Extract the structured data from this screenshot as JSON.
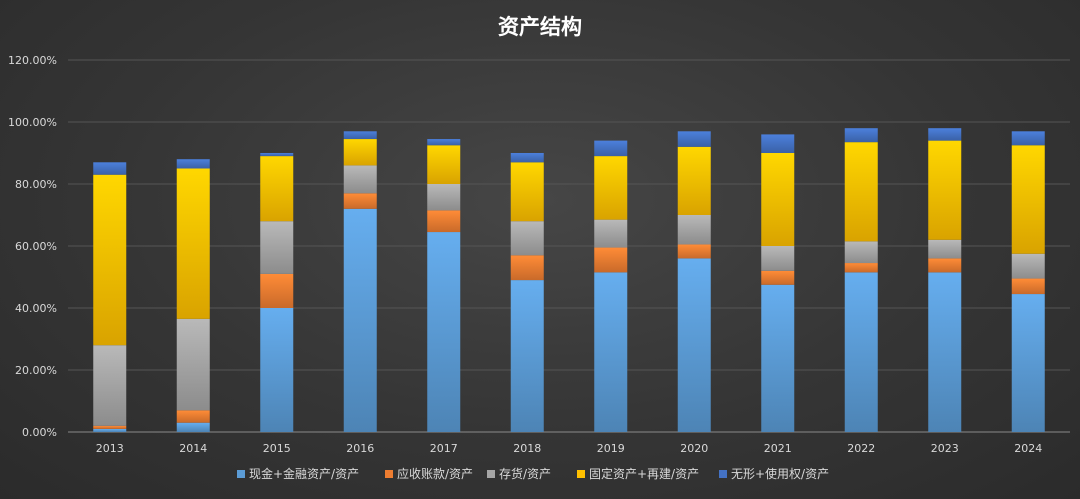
{
  "chart_data": {
    "type": "bar",
    "stacked": true,
    "title": "资产结构",
    "categories": [
      "2013",
      "2014",
      "2015",
      "2016",
      "2017",
      "2018",
      "2019",
      "2020",
      "2021",
      "2022",
      "2023",
      "2024"
    ],
    "ylim": [
      0,
      120
    ],
    "yticks": [
      0,
      20,
      40,
      60,
      80,
      100,
      120
    ],
    "ytick_labels": [
      "0.00%",
      "20.00%",
      "40.00%",
      "60.00%",
      "80.00%",
      "100.00%",
      "120.00%"
    ],
    "grid": true,
    "legend_position": "bottom",
    "series": [
      {
        "name": "现金+金融资产/资产",
        "color": "#5b9bd5",
        "values": [
          1.0,
          3.0,
          40.0,
          72.0,
          64.5,
          49.0,
          51.5,
          56.0,
          47.5,
          51.5,
          51.5,
          44.5
        ]
      },
      {
        "name": "应收账款/资产",
        "color": "#ed7d31",
        "values": [
          1.0,
          4.0,
          11.0,
          5.0,
          7.0,
          8.0,
          8.0,
          4.5,
          4.5,
          3.0,
          4.5,
          5.0
        ]
      },
      {
        "name": "存货/资产",
        "color": "#a5a5a5",
        "values": [
          26.0,
          29.5,
          17.0,
          9.0,
          8.5,
          11.0,
          9.0,
          9.5,
          8.0,
          7.0,
          6.0,
          8.0
        ]
      },
      {
        "name": "固定资产+再建/资产",
        "color": "#ffc000",
        "values": [
          55.0,
          48.5,
          21.0,
          8.5,
          12.5,
          19.0,
          20.5,
          22.0,
          30.0,
          32.0,
          32.0,
          35.0
        ]
      },
      {
        "name": "无形+使用权/资产",
        "color": "#4472c4",
        "values": [
          4.0,
          3.0,
          1.0,
          2.5,
          2.0,
          3.0,
          5.0,
          5.0,
          6.0,
          4.5,
          4.0,
          4.5
        ]
      }
    ]
  }
}
